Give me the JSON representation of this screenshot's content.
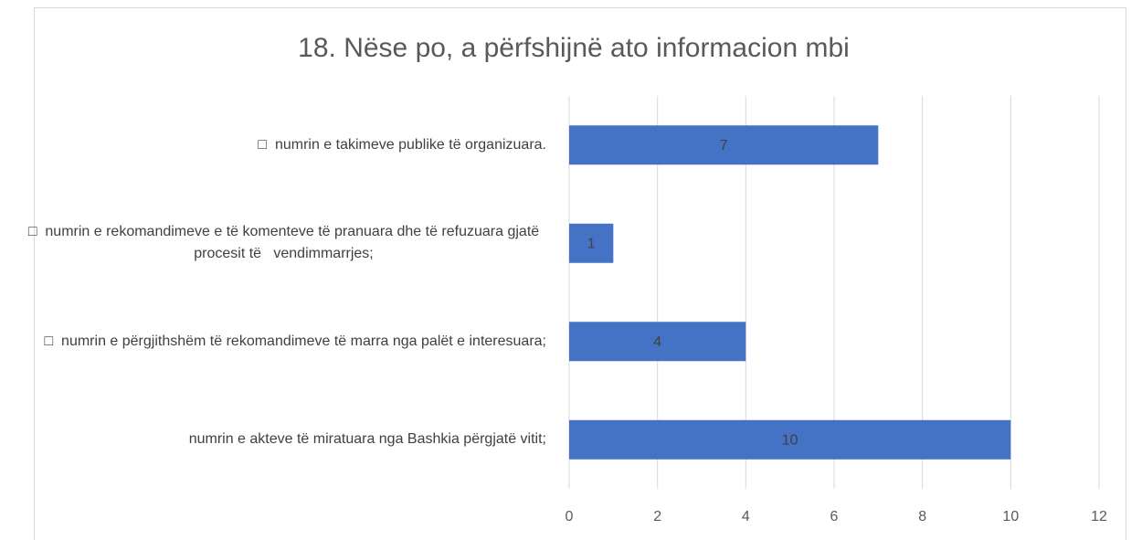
{
  "chart_data": {
    "type": "bar",
    "orientation": "horizontal",
    "title": "18. Nëse po, a përfshijnë ato informacion mbi",
    "categories": [
      "□  numrin e takimeve publike të organizuara.",
      "□  numrin e rekomandimeve e të komenteve të pranuara dhe të refuzuara gjatë procesit të   vendimmarrjes;",
      "□  numrin e përgjithshëm të rekomandimeve të marra nga palët e interesuara;",
      "numrin e akteve të miratuara nga Bashkia përgjatë vitit;"
    ],
    "values": [
      7,
      1,
      4,
      10
    ],
    "color": "#4472c4",
    "xlim": [
      0,
      12
    ],
    "xticks": [
      0,
      2,
      4,
      6,
      8,
      10,
      12
    ],
    "grid": true
  }
}
